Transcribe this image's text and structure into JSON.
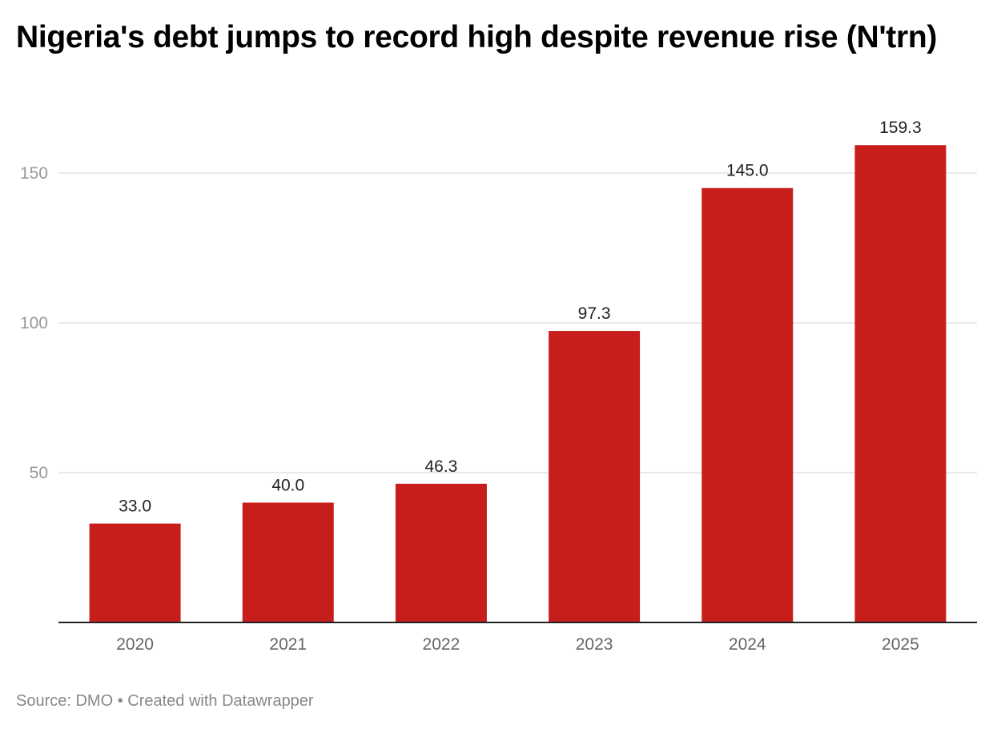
{
  "chart_data": {
    "type": "bar",
    "title": "Nigeria's debt jumps to record high despite revenue rise (N'trn)",
    "categories": [
      "2020",
      "2021",
      "2022",
      "2023",
      "2024",
      "2025"
    ],
    "values": [
      33.0,
      40.0,
      46.3,
      97.3,
      145.0,
      159.3
    ],
    "value_labels": [
      "33.0",
      "40.0",
      "46.3",
      "97.3",
      "145.0",
      "159.3"
    ],
    "xlabel": "",
    "ylabel": "",
    "ylim": [
      0,
      163
    ],
    "yticks": [
      50,
      100,
      150
    ],
    "grid": true,
    "bar_color": "#c71e1d",
    "source": "Source: DMO • Created with Datawrapper"
  }
}
